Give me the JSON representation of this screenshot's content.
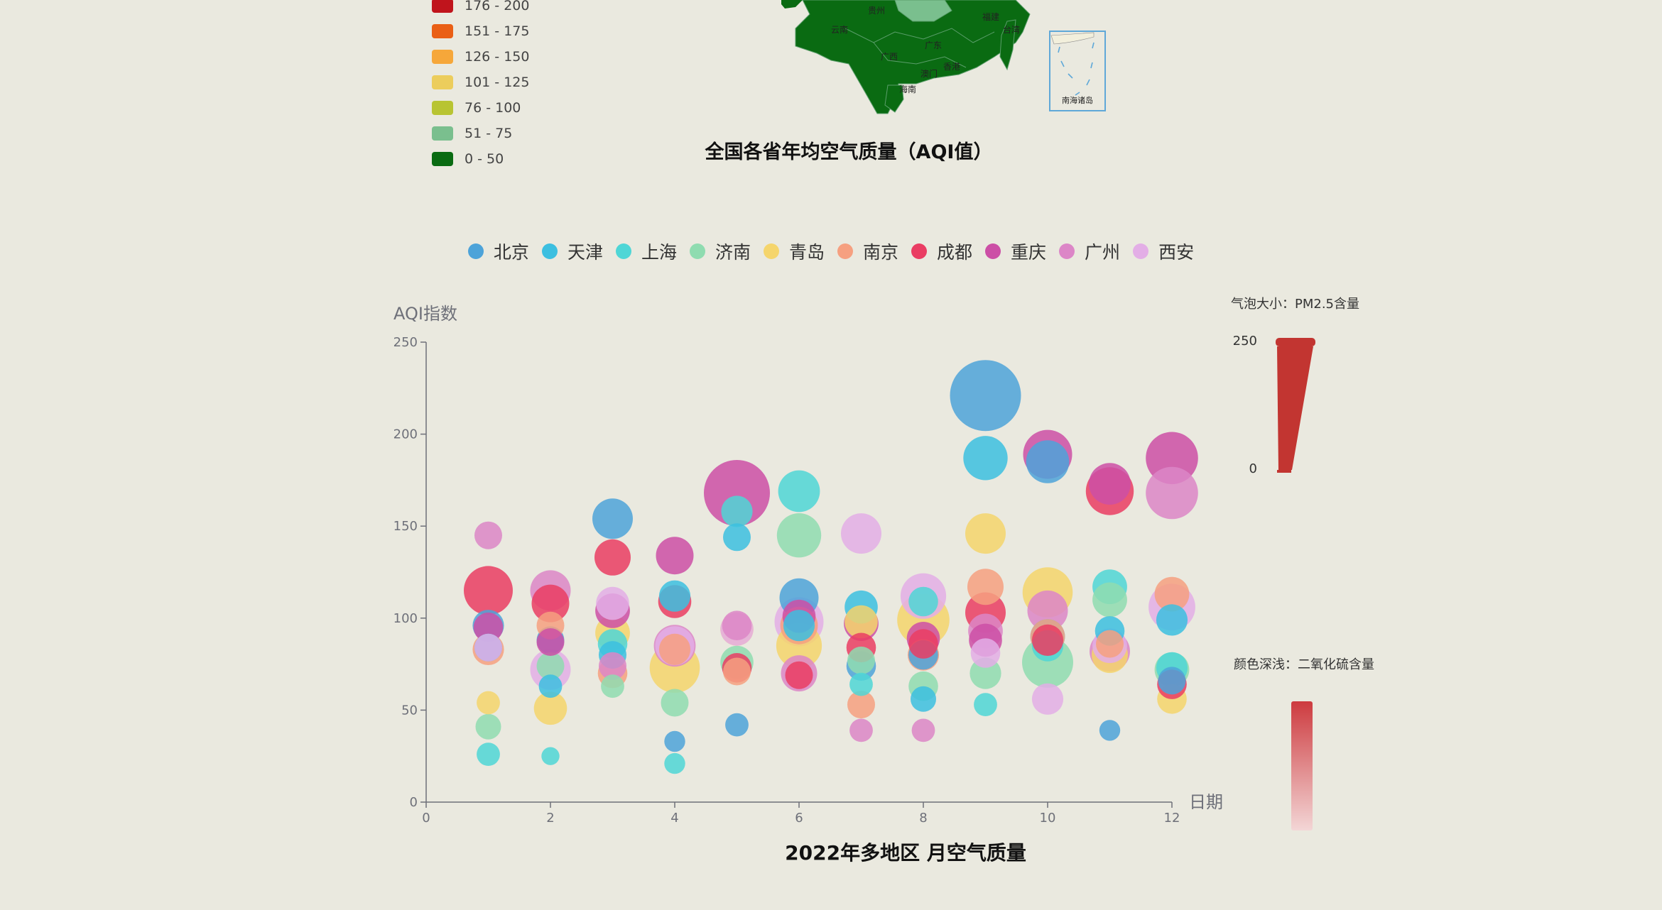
{
  "map": {
    "title": "全国各省年均空气质量（AQI值）",
    "legend": [
      {
        "label": "176 - 200",
        "color": "#c0141c"
      },
      {
        "label": "151 - 175",
        "color": "#ea5f15"
      },
      {
        "label": "126 - 150",
        "color": "#f6a73a"
      },
      {
        "label": "101 - 125",
        "color": "#eccd5c"
      },
      {
        "label": "76 - 100",
        "color": "#b8c432"
      },
      {
        "label": "51 - 75",
        "color": "#7abf8e"
      },
      {
        "label": "0 - 50",
        "color": "#0a6b12"
      }
    ],
    "labels": [
      "贵州",
      "云南",
      "广西",
      "广东",
      "香港",
      "澳门",
      "海南",
      "福建",
      "台湾"
    ],
    "inset_label": "南海诸岛"
  },
  "visual_map": {
    "size_title": "气泡大小：PM2.5含量",
    "size_max": "250",
    "size_min": "0",
    "color_title": "颜色深浅：二氧化硫含量",
    "size_color": "#c23531",
    "gradient_top": "#cd3b3f",
    "gradient_bottom": "#f3d6d6"
  },
  "chart_data": {
    "type": "scatter",
    "title": "2022年多地区 月空气质量",
    "xlabel": "日期",
    "ylabel": "AQI指数",
    "xlim": [
      0,
      12
    ],
    "ylim": [
      0,
      250
    ],
    "xticks": [
      "0",
      "2",
      "4",
      "6",
      "8",
      "10",
      "12"
    ],
    "yticks": [
      "0",
      "50",
      "100",
      "150",
      "200",
      "250"
    ],
    "grid": false,
    "legend_position": "top",
    "series": [
      {
        "name": "北京",
        "color": "#4da3d9",
        "points": [
          [
            1,
            96,
            18
          ],
          [
            2,
            88,
            14
          ],
          [
            3,
            154,
            30
          ],
          [
            4,
            33,
            8
          ],
          [
            5,
            42,
            10
          ],
          [
            6,
            111,
            28
          ],
          [
            7,
            74,
            16
          ],
          [
            8,
            80,
            16
          ],
          [
            9,
            221,
            110
          ],
          [
            10,
            185,
            34
          ],
          [
            11,
            39,
            8
          ],
          [
            12,
            66,
            14
          ]
        ]
      },
      {
        "name": "天津",
        "color": "#3cbfe0",
        "points": [
          [
            1,
            84,
            14
          ],
          [
            2,
            63,
            10
          ],
          [
            3,
            80,
            14
          ],
          [
            4,
            112,
            18
          ],
          [
            5,
            144,
            14
          ],
          [
            6,
            96,
            18
          ],
          [
            7,
            106,
            20
          ],
          [
            8,
            56,
            12
          ],
          [
            9,
            187,
            36
          ],
          [
            10,
            90,
            22
          ],
          [
            11,
            93,
            16
          ],
          [
            12,
            99,
            18
          ]
        ]
      },
      {
        "name": "上海",
        "color": "#4fd6d6",
        "points": [
          [
            1,
            26,
            10
          ],
          [
            2,
            25,
            6
          ],
          [
            3,
            86,
            16
          ],
          [
            4,
            21,
            8
          ],
          [
            5,
            158,
            18
          ],
          [
            6,
            169,
            32
          ],
          [
            7,
            64,
            10
          ],
          [
            8,
            109,
            16
          ],
          [
            9,
            53,
            10
          ],
          [
            10,
            85,
            18
          ],
          [
            11,
            117,
            22
          ],
          [
            12,
            73,
            18
          ]
        ]
      },
      {
        "name": "济南",
        "color": "#8fdcb0",
        "points": [
          [
            1,
            41,
            12
          ],
          [
            2,
            74,
            14
          ],
          [
            3,
            63,
            10
          ],
          [
            4,
            54,
            14
          ],
          [
            5,
            76,
            20
          ],
          [
            6,
            145,
            36
          ],
          [
            7,
            77,
            14
          ],
          [
            8,
            63,
            16
          ],
          [
            9,
            70,
            18
          ],
          [
            10,
            76,
            48
          ],
          [
            11,
            110,
            22
          ],
          [
            12,
            72,
            22
          ]
        ]
      },
      {
        "name": "青岛",
        "color": "#f5d56c",
        "points": [
          [
            1,
            54,
            10
          ],
          [
            2,
            51,
            20
          ],
          [
            3,
            92,
            22
          ],
          [
            4,
            73,
            46
          ],
          [
            5,
            94,
            20
          ],
          [
            6,
            85,
            38
          ],
          [
            7,
            98,
            20
          ],
          [
            8,
            99,
            50
          ],
          [
            9,
            146,
            30
          ],
          [
            10,
            114,
            46
          ],
          [
            11,
            80,
            24
          ],
          [
            12,
            56,
            16
          ]
        ]
      },
      {
        "name": "南京",
        "color": "#f6a080",
        "points": [
          [
            1,
            83,
            18
          ],
          [
            2,
            96,
            14
          ],
          [
            3,
            70,
            16
          ],
          [
            4,
            83,
            18
          ],
          [
            5,
            71,
            14
          ],
          [
            6,
            96,
            26
          ],
          [
            7,
            53,
            14
          ],
          [
            8,
            80,
            18
          ],
          [
            9,
            117,
            24
          ],
          [
            10,
            90,
            22
          ],
          [
            11,
            86,
            14
          ],
          [
            12,
            113,
            22
          ]
        ]
      },
      {
        "name": "成都",
        "color": "#ea3d63",
        "points": [
          [
            1,
            115,
            44
          ],
          [
            2,
            108,
            26
          ],
          [
            3,
            133,
            24
          ],
          [
            4,
            109,
            20
          ],
          [
            5,
            73,
            16
          ],
          [
            6,
            69,
            14
          ],
          [
            7,
            84,
            16
          ],
          [
            8,
            86,
            16
          ],
          [
            9,
            103,
            30
          ],
          [
            10,
            88,
            18
          ],
          [
            11,
            169,
            42
          ],
          [
            12,
            64,
            16
          ]
        ]
      },
      {
        "name": "重庆",
        "color": "#cc4fa6",
        "points": [
          [
            1,
            95,
            16
          ],
          [
            2,
            87,
            14
          ],
          [
            3,
            104,
            22
          ],
          [
            4,
            134,
            26
          ],
          [
            5,
            168,
            80
          ],
          [
            6,
            101,
            20
          ],
          [
            7,
            97,
            22
          ],
          [
            8,
            89,
            20
          ],
          [
            9,
            88,
            20
          ],
          [
            10,
            189,
            44
          ],
          [
            11,
            173,
            32
          ],
          [
            12,
            187,
            50
          ]
        ]
      },
      {
        "name": "广州",
        "color": "#dc86c7",
        "points": [
          [
            1,
            145,
            14
          ],
          [
            2,
            115,
            30
          ],
          [
            3,
            74,
            14
          ],
          [
            4,
            85,
            32
          ],
          [
            5,
            96,
            16
          ],
          [
            6,
            70,
            24
          ],
          [
            7,
            39,
            10
          ],
          [
            8,
            39,
            10
          ],
          [
            9,
            93,
            22
          ],
          [
            10,
            104,
            30
          ],
          [
            11,
            82,
            30
          ],
          [
            12,
            168,
            50
          ]
        ]
      },
      {
        "name": "西安",
        "color": "#e3aee6",
        "points": [
          [
            1,
            84,
            14
          ],
          [
            2,
            72,
            30
          ],
          [
            3,
            108,
            20
          ],
          [
            4,
            85,
            28
          ],
          [
            5,
            94,
            20
          ],
          [
            6,
            98,
            44
          ],
          [
            7,
            146,
            30
          ],
          [
            8,
            112,
            38
          ],
          [
            9,
            81,
            16
          ],
          [
            10,
            56,
            18
          ],
          [
            11,
            85,
            22
          ],
          [
            12,
            106,
            40
          ]
        ]
      }
    ]
  }
}
